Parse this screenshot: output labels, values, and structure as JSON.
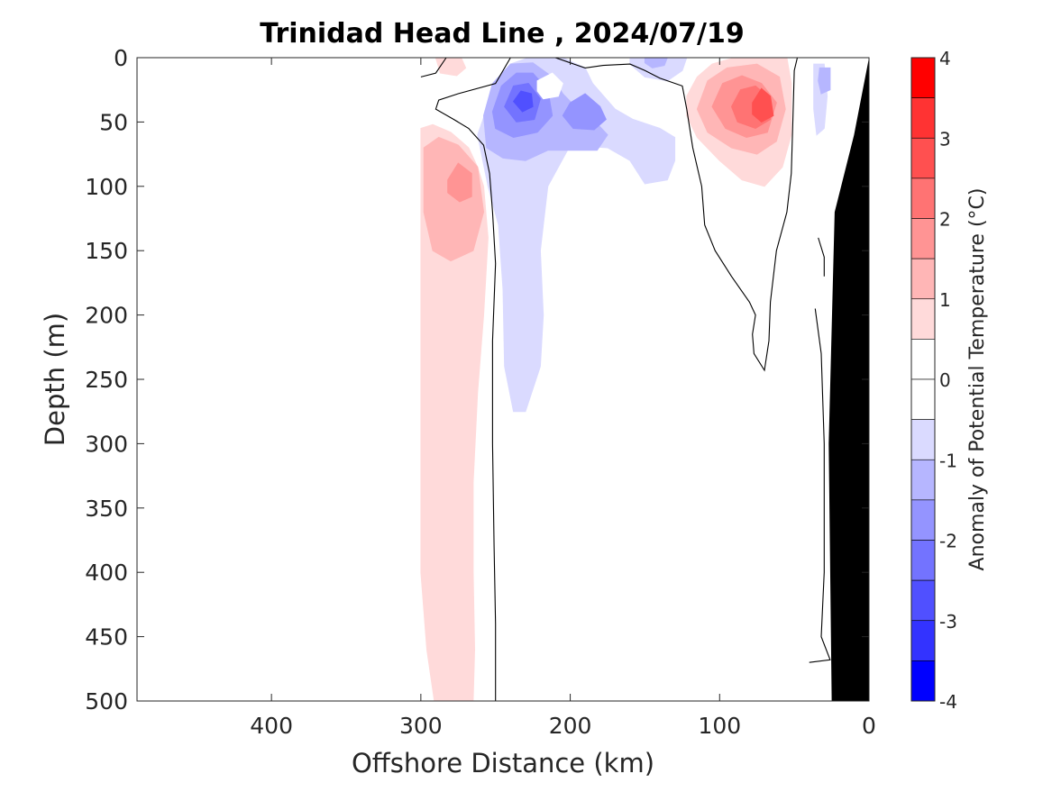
{
  "chart_data": {
    "type": "heatmap",
    "subtype": "filled-contour section",
    "title": "Trinidad Head Line , 2024/07/19",
    "xlabel": "Offshore Distance (km)",
    "ylabel": "Depth (m)",
    "x_axis_reversed": true,
    "y_axis_reversed": true,
    "xlim": [
      490,
      0
    ],
    "ylim": [
      0,
      500
    ],
    "x_ticks": [
      400,
      300,
      200,
      100,
      0
    ],
    "y_ticks": [
      0,
      50,
      100,
      150,
      200,
      250,
      300,
      350,
      400,
      450,
      500
    ],
    "colorbar": {
      "label": "Anomaly of Potential Temperature (°C)",
      "range": [
        -4,
        4
      ],
      "ticks": [
        4,
        3,
        2,
        1,
        0,
        -1,
        -2,
        -3,
        -4
      ],
      "levels": [
        {
          "from": 3.5,
          "to": 4.0,
          "color": "#ff0000"
        },
        {
          "from": 3.0,
          "to": 3.5,
          "color": "#ff3333"
        },
        {
          "from": 2.5,
          "to": 3.0,
          "color": "#ff5050"
        },
        {
          "from": 2.0,
          "to": 2.5,
          "color": "#ff7373"
        },
        {
          "from": 1.5,
          "to": 2.0,
          "color": "#ff9494"
        },
        {
          "from": 1.0,
          "to": 1.5,
          "color": "#ffb6b6"
        },
        {
          "from": 0.5,
          "to": 1.0,
          "color": "#ffdada"
        },
        {
          "from": 0.0,
          "to": 0.5,
          "color": "#ffffff"
        },
        {
          "from": -0.5,
          "to": 0.0,
          "color": "#ffffff"
        },
        {
          "from": -1.0,
          "to": -0.5,
          "color": "#dadaff"
        },
        {
          "from": -1.5,
          "to": -1.0,
          "color": "#b6b6ff"
        },
        {
          "from": -2.0,
          "to": -1.5,
          "color": "#9494ff"
        },
        {
          "from": -2.5,
          "to": -2.0,
          "color": "#7373ff"
        },
        {
          "from": -3.0,
          "to": -2.5,
          "color": "#5050ff"
        },
        {
          "from": -3.5,
          "to": -3.0,
          "color": "#3333ff"
        },
        {
          "from": -4.0,
          "to": -3.5,
          "color": "#0000ff"
        }
      ]
    },
    "features": [
      {
        "kind": "warm",
        "center_km": 270,
        "center_depth_m": 100,
        "peak_anomaly": 2.0,
        "extent_depth_m": [
          55,
          500
        ]
      },
      {
        "kind": "cold",
        "center_km": 230,
        "center_depth_m": 30,
        "peak_anomaly": -3.0,
        "extent_depth_m": [
          0,
          275
        ]
      },
      {
        "kind": "cold",
        "center_km": 190,
        "center_depth_m": 45,
        "peak_anomaly": -2.0
      },
      {
        "kind": "cold",
        "center_km": 140,
        "center_depth_m": 0,
        "peak_anomaly": -1.5
      },
      {
        "kind": "warm",
        "center_km": 70,
        "center_depth_m": 38,
        "peak_anomaly": 3.0,
        "extent_depth_m": [
          0,
          100
        ]
      },
      {
        "kind": "cold",
        "center_km": 25,
        "center_depth_m": 20,
        "peak_anomaly": -1.5
      },
      {
        "kind": "warm",
        "center_km": 280,
        "center_depth_m": 5,
        "peak_anomaly": 1.0
      }
    ],
    "bottom_topography": {
      "color": "#000000",
      "note": "continental slope near 0 km"
    },
    "grid": false
  }
}
